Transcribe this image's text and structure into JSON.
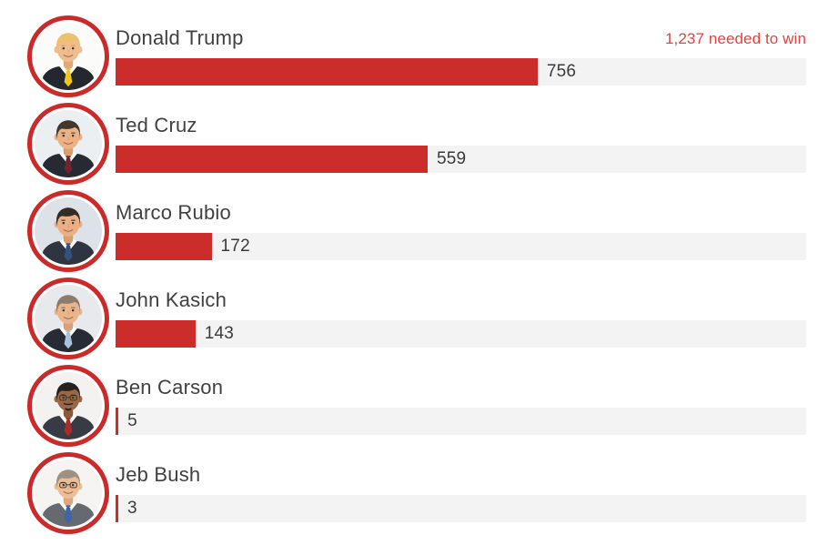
{
  "header": {
    "note": "1,237 needed to win",
    "note_color": "#e8413c"
  },
  "colors": {
    "bar": "#cb2d2b",
    "track": "#f3f3f3",
    "avatar_ring": "#cc2a28",
    "name_text": "#414042",
    "value_text": "#3a3a3a",
    "background": "#ffffff"
  },
  "chart_data": {
    "type": "bar",
    "orientation": "horizontal",
    "title": "",
    "categories": [
      "Donald Trump",
      "Ted Cruz",
      "Marco Rubio",
      "John Kasich",
      "Ben Carson",
      "Jeb Bush"
    ],
    "values": [
      756,
      559,
      172,
      143,
      5,
      3
    ],
    "xlabel": "",
    "ylabel": "",
    "xlim": [
      0,
      1237
    ],
    "grid": false,
    "legend": false,
    "annotations": [
      "1,237 needed to win"
    ],
    "value_labels": [
      "756",
      "559",
      "172",
      "143",
      "5",
      "3"
    ]
  },
  "rows": [
    {
      "name": "Donald Trump",
      "value": 756,
      "value_label": "756",
      "avatar": {
        "icon": "donald-trump-portrait",
        "background": "#fbfbfa",
        "skin": "#f0bc8e",
        "skin_shadow": "#e2a877",
        "hair": "#eec06a",
        "brow": "#c89b5a",
        "suit": "#23272e",
        "tie": "#f3c51f",
        "glasses": false,
        "facial_hair": false
      }
    },
    {
      "name": "Ted Cruz",
      "value": 559,
      "value_label": "559",
      "avatar": {
        "icon": "ted-cruz-portrait",
        "background": "#eceff1",
        "skin": "#eab285",
        "skin_shadow": "#d99f73",
        "hair": "#41372f",
        "brow": "#3a302a",
        "suit": "#252a33",
        "tie": "#6e2430",
        "glasses": false,
        "facial_hair": false
      }
    },
    {
      "name": "Marco Rubio",
      "value": 172,
      "value_label": "172",
      "avatar": {
        "icon": "marco-rubio-portrait",
        "background": "#dde2e8",
        "skin": "#eab083",
        "skin_shadow": "#d89d72",
        "hair": "#332b26",
        "brow": "#2f2722",
        "suit": "#2e3540",
        "tie": "#33517e",
        "glasses": false,
        "facial_hair": false
      }
    },
    {
      "name": "John Kasich",
      "value": 143,
      "value_label": "143",
      "avatar": {
        "icon": "john-kasich-portrait",
        "background": "#e7e9ec",
        "skin": "#e9b58b",
        "skin_shadow": "#d8a179",
        "hair": "#8d7c69",
        "brow": "#6e5f4f",
        "suit": "#272b33",
        "tie": "#a9c3dc",
        "glasses": false,
        "facial_hair": false
      }
    },
    {
      "name": "Ben Carson",
      "value": 5,
      "value_label": "5",
      "avatar": {
        "icon": "ben-carson-portrait",
        "background": "#f3f2f1",
        "skin": "#9c6844",
        "skin_shadow": "#8a5936",
        "hair": "#26211e",
        "brow": "#1f1b18",
        "suit": "#363b44",
        "tie": "#a82c2a",
        "glasses": true,
        "facial_hair": true
      }
    },
    {
      "name": "Jeb Bush",
      "value": 3,
      "value_label": "3",
      "avatar": {
        "icon": "jeb-bush-portrait",
        "background": "#f5f4f3",
        "skin": "#edbd94",
        "skin_shadow": "#dca87e",
        "hair": "#9d9181",
        "brow": "#857a6b",
        "suit": "#656a70",
        "tie": "#3c66a8",
        "glasses": true,
        "facial_hair": false
      }
    }
  ]
}
